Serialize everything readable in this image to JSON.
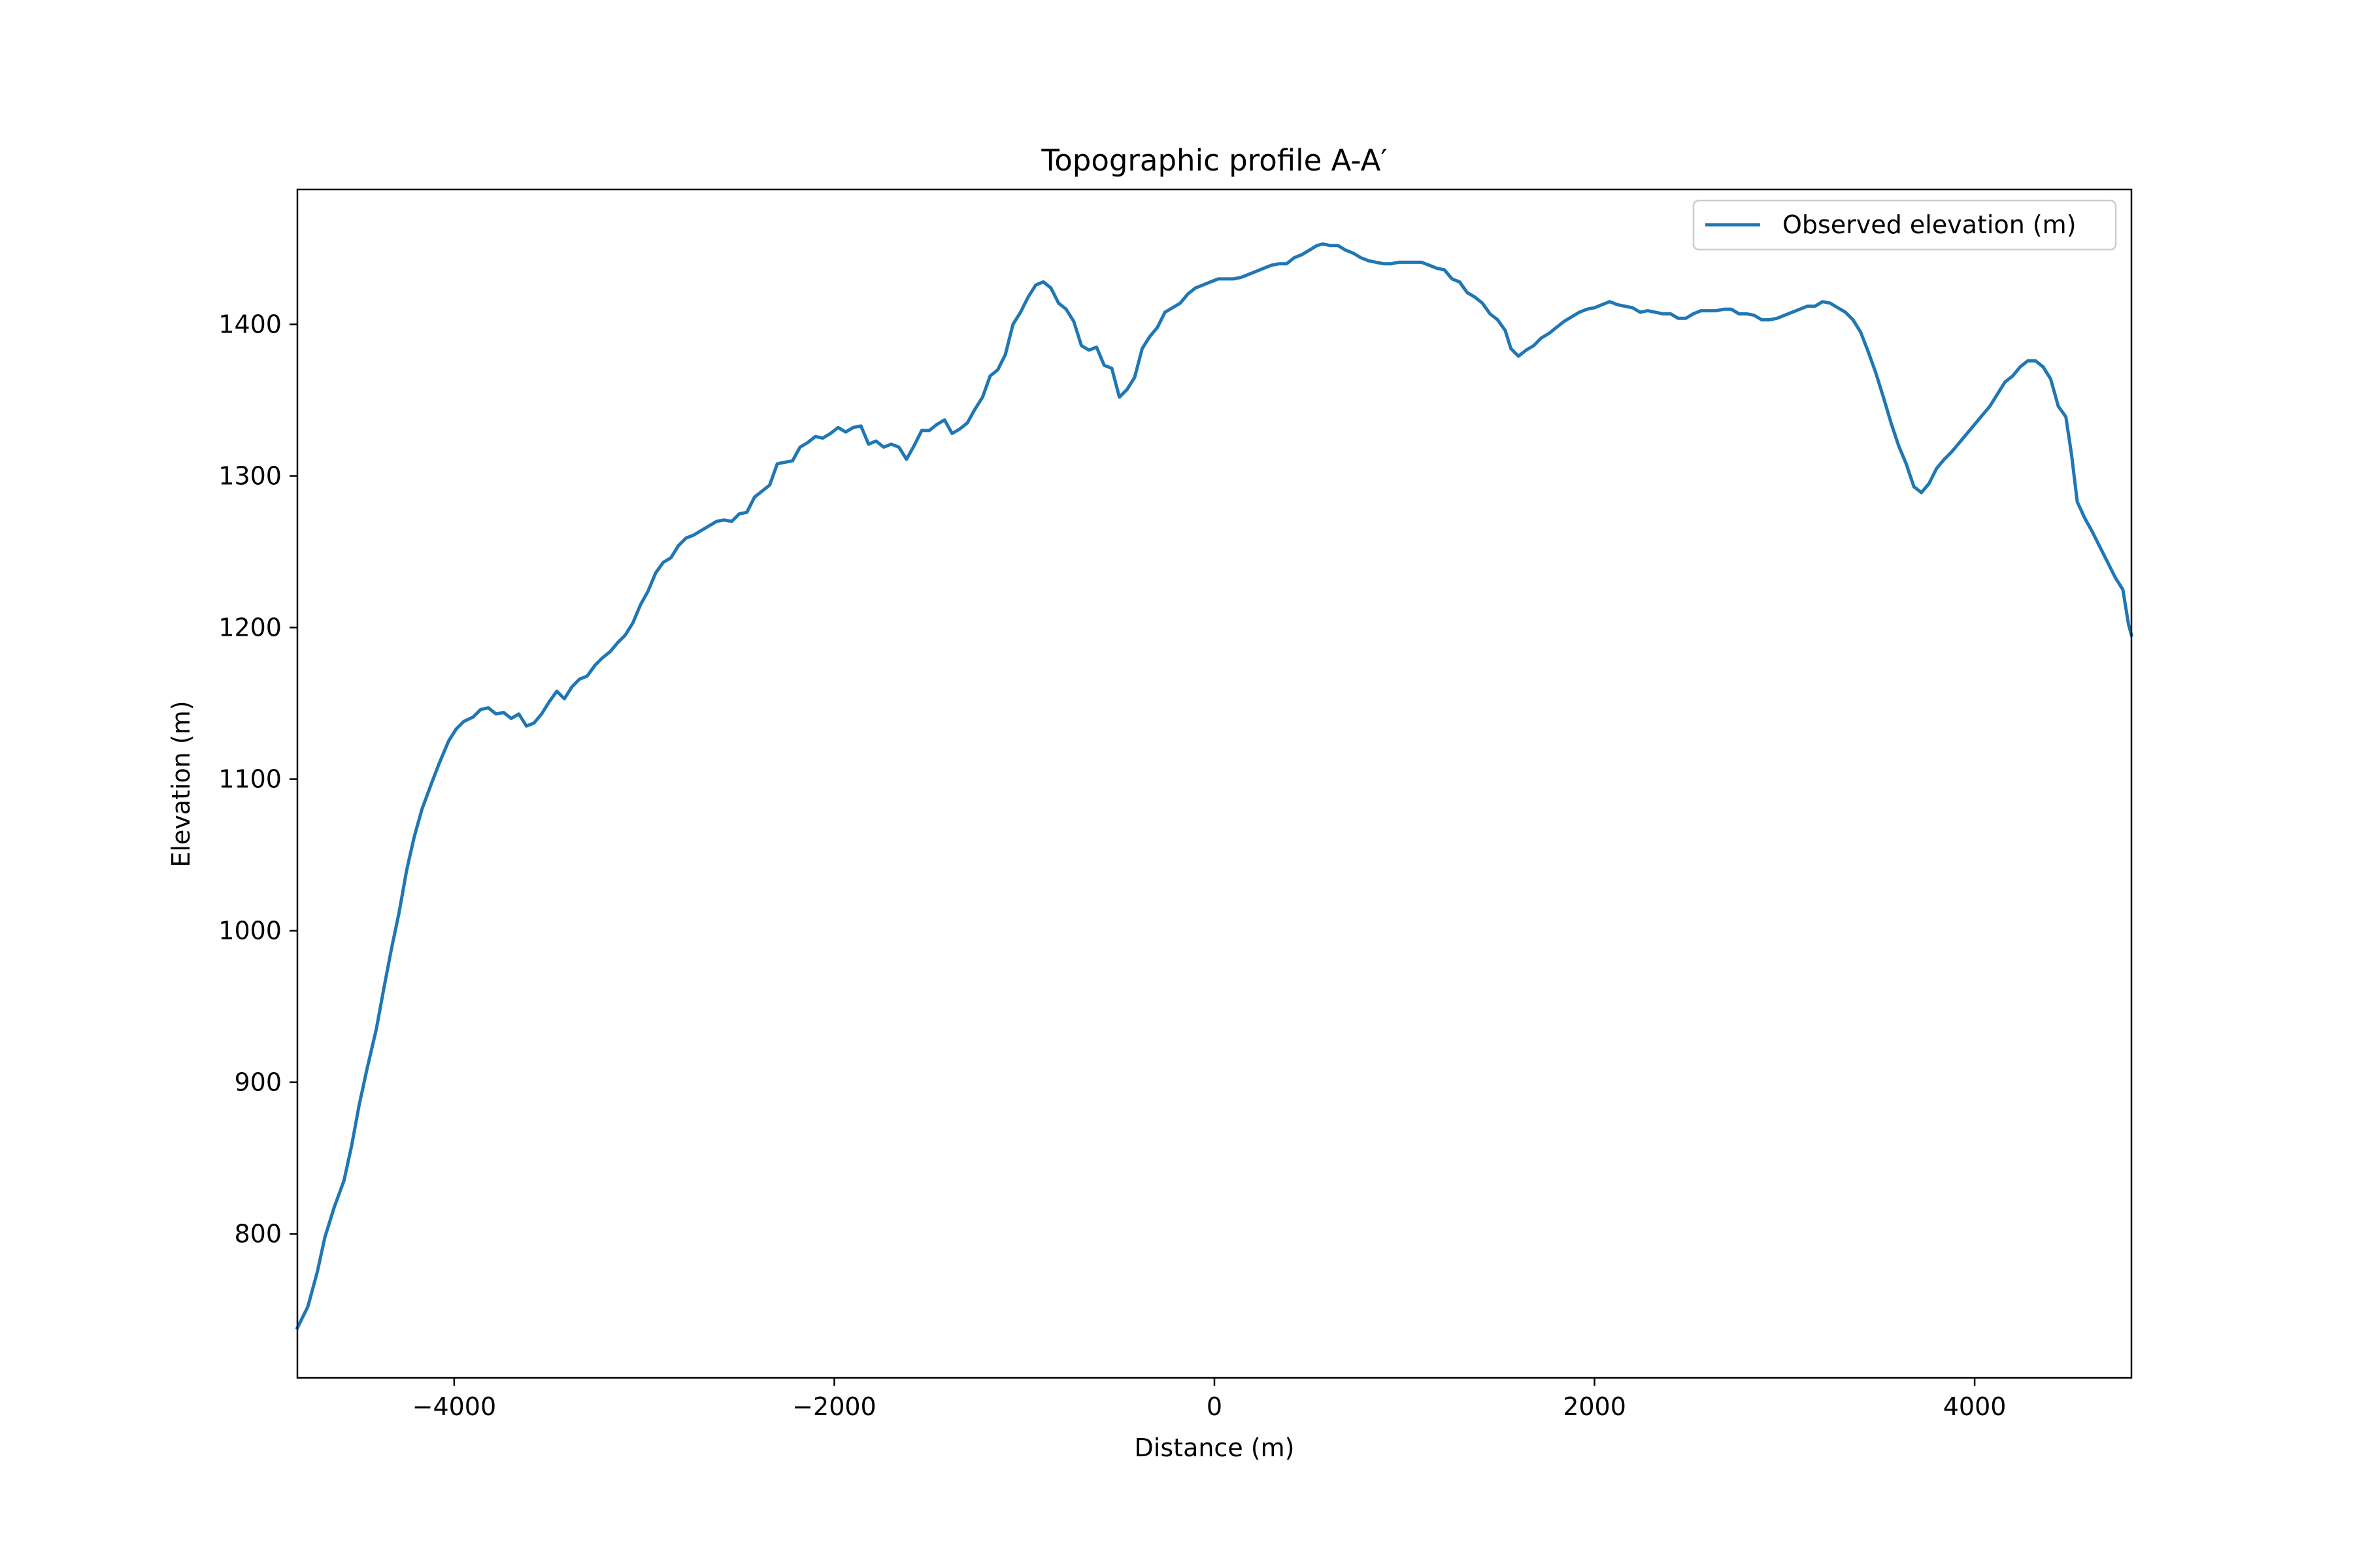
{
  "chart_data": {
    "type": "line",
    "title": "Topographic profile A-A′",
    "xlabel": "Distance (m)",
    "ylabel": "Elevation (m)",
    "xlim": [
      -4825,
      4825
    ],
    "ylim": [
      705,
      1489
    ],
    "grid": false,
    "legend_position": "top-right",
    "xticks": [
      -4000,
      -2000,
      0,
      2000,
      4000
    ],
    "xtick_labels": [
      "−4000",
      "−2000",
      "0",
      "2000",
      "4000"
    ],
    "yticks": [
      800,
      900,
      1000,
      1100,
      1200,
      1300,
      1400
    ],
    "ytick_labels": [
      "800",
      "900",
      "1000",
      "1100",
      "1200",
      "1300",
      "1400"
    ],
    "series": [
      {
        "name": "Observed elevation (m)",
        "color": "#1f77b4",
        "points": [
          [
            -4825,
            738
          ],
          [
            -4770,
            752
          ],
          [
            -4720,
            775
          ],
          [
            -4680,
            798
          ],
          [
            -4630,
            818
          ],
          [
            -4580,
            835
          ],
          [
            -4540,
            858
          ],
          [
            -4500,
            885
          ],
          [
            -4460,
            908
          ],
          [
            -4410,
            935
          ],
          [
            -4370,
            962
          ],
          [
            -4330,
            988
          ],
          [
            -4290,
            1012
          ],
          [
            -4250,
            1040
          ],
          [
            -4210,
            1062
          ],
          [
            -4170,
            1080
          ],
          [
            -4120,
            1097
          ],
          [
            -4080,
            1110
          ],
          [
            -4030,
            1125
          ],
          [
            -3990,
            1133
          ],
          [
            -3950,
            1138
          ],
          [
            -3900,
            1141
          ],
          [
            -3860,
            1146
          ],
          [
            -3820,
            1147
          ],
          [
            -3780,
            1143
          ],
          [
            -3740,
            1144
          ],
          [
            -3700,
            1140
          ],
          [
            -3660,
            1143
          ],
          [
            -3620,
            1135
          ],
          [
            -3580,
            1137
          ],
          [
            -3540,
            1143
          ],
          [
            -3500,
            1151
          ],
          [
            -3460,
            1158
          ],
          [
            -3420,
            1153
          ],
          [
            -3380,
            1161
          ],
          [
            -3340,
            1166
          ],
          [
            -3300,
            1168
          ],
          [
            -3260,
            1175
          ],
          [
            -3220,
            1180
          ],
          [
            -3180,
            1184
          ],
          [
            -3140,
            1190
          ],
          [
            -3100,
            1195
          ],
          [
            -3060,
            1203
          ],
          [
            -3020,
            1215
          ],
          [
            -2980,
            1224
          ],
          [
            -2940,
            1236
          ],
          [
            -2900,
            1243
          ],
          [
            -2860,
            1246
          ],
          [
            -2820,
            1254
          ],
          [
            -2780,
            1259
          ],
          [
            -2740,
            1261
          ],
          [
            -2700,
            1264
          ],
          [
            -2660,
            1267
          ],
          [
            -2620,
            1270
          ],
          [
            -2580,
            1271
          ],
          [
            -2540,
            1270
          ],
          [
            -2500,
            1275
          ],
          [
            -2460,
            1276
          ],
          [
            -2420,
            1286
          ],
          [
            -2380,
            1290
          ],
          [
            -2340,
            1294
          ],
          [
            -2300,
            1308
          ],
          [
            -2260,
            1309
          ],
          [
            -2220,
            1310
          ],
          [
            -2180,
            1319
          ],
          [
            -2140,
            1322
          ],
          [
            -2100,
            1326
          ],
          [
            -2060,
            1325
          ],
          [
            -2020,
            1328
          ],
          [
            -1980,
            1332
          ],
          [
            -1940,
            1329
          ],
          [
            -1900,
            1332
          ],
          [
            -1860,
            1333
          ],
          [
            -1820,
            1321
          ],
          [
            -1780,
            1323
          ],
          [
            -1740,
            1319
          ],
          [
            -1700,
            1321
          ],
          [
            -1660,
            1319
          ],
          [
            -1620,
            1311
          ],
          [
            -1580,
            1320
          ],
          [
            -1540,
            1330
          ],
          [
            -1500,
            1330
          ],
          [
            -1460,
            1334
          ],
          [
            -1420,
            1337
          ],
          [
            -1380,
            1328
          ],
          [
            -1340,
            1331
          ],
          [
            -1300,
            1335
          ],
          [
            -1260,
            1344
          ],
          [
            -1220,
            1352
          ],
          [
            -1180,
            1366
          ],
          [
            -1140,
            1370
          ],
          [
            -1100,
            1380
          ],
          [
            -1060,
            1400
          ],
          [
            -1020,
            1408
          ],
          [
            -980,
            1418
          ],
          [
            -940,
            1426
          ],
          [
            -900,
            1428
          ],
          [
            -860,
            1424
          ],
          [
            -820,
            1414
          ],
          [
            -780,
            1410
          ],
          [
            -740,
            1402
          ],
          [
            -700,
            1386
          ],
          [
            -660,
            1383
          ],
          [
            -620,
            1385
          ],
          [
            -580,
            1373
          ],
          [
            -540,
            1371
          ],
          [
            -500,
            1352
          ],
          [
            -460,
            1357
          ],
          [
            -420,
            1365
          ],
          [
            -380,
            1384
          ],
          [
            -340,
            1392
          ],
          [
            -300,
            1398
          ],
          [
            -260,
            1408
          ],
          [
            -220,
            1411
          ],
          [
            -180,
            1414
          ],
          [
            -140,
            1420
          ],
          [
            -100,
            1424
          ],
          [
            -60,
            1426
          ],
          [
            -20,
            1428
          ],
          [
            20,
            1430
          ],
          [
            60,
            1430
          ],
          [
            100,
            1430
          ],
          [
            140,
            1431
          ],
          [
            180,
            1433
          ],
          [
            220,
            1435
          ],
          [
            260,
            1437
          ],
          [
            300,
            1439
          ],
          [
            340,
            1440
          ],
          [
            380,
            1440
          ],
          [
            420,
            1444
          ],
          [
            460,
            1446
          ],
          [
            500,
            1449
          ],
          [
            540,
            1452
          ],
          [
            570,
            1453
          ],
          [
            610,
            1452
          ],
          [
            650,
            1452
          ],
          [
            690,
            1449
          ],
          [
            730,
            1447
          ],
          [
            770,
            1444
          ],
          [
            810,
            1442
          ],
          [
            850,
            1441
          ],
          [
            890,
            1440
          ],
          [
            930,
            1440
          ],
          [
            970,
            1441
          ],
          [
            1010,
            1441
          ],
          [
            1050,
            1441
          ],
          [
            1090,
            1441
          ],
          [
            1130,
            1439
          ],
          [
            1170,
            1437
          ],
          [
            1210,
            1436
          ],
          [
            1250,
            1430
          ],
          [
            1290,
            1428
          ],
          [
            1330,
            1421
          ],
          [
            1370,
            1418
          ],
          [
            1410,
            1414
          ],
          [
            1450,
            1407
          ],
          [
            1490,
            1403
          ],
          [
            1530,
            1396
          ],
          [
            1560,
            1384
          ],
          [
            1600,
            1379
          ],
          [
            1640,
            1383
          ],
          [
            1680,
            1386
          ],
          [
            1720,
            1391
          ],
          [
            1760,
            1394
          ],
          [
            1800,
            1398
          ],
          [
            1840,
            1402
          ],
          [
            1880,
            1405
          ],
          [
            1920,
            1408
          ],
          [
            1960,
            1410
          ],
          [
            2000,
            1411
          ],
          [
            2040,
            1413
          ],
          [
            2080,
            1415
          ],
          [
            2120,
            1413
          ],
          [
            2160,
            1412
          ],
          [
            2200,
            1411
          ],
          [
            2240,
            1408
          ],
          [
            2280,
            1409
          ],
          [
            2320,
            1408
          ],
          [
            2360,
            1407
          ],
          [
            2400,
            1407
          ],
          [
            2440,
            1404
          ],
          [
            2480,
            1404
          ],
          [
            2520,
            1407
          ],
          [
            2560,
            1409
          ],
          [
            2600,
            1409
          ],
          [
            2640,
            1409
          ],
          [
            2680,
            1410
          ],
          [
            2720,
            1410
          ],
          [
            2760,
            1407
          ],
          [
            2800,
            1407
          ],
          [
            2840,
            1406
          ],
          [
            2880,
            1403
          ],
          [
            2920,
            1403
          ],
          [
            2960,
            1404
          ],
          [
            3000,
            1406
          ],
          [
            3040,
            1408
          ],
          [
            3080,
            1410
          ],
          [
            3120,
            1412
          ],
          [
            3160,
            1412
          ],
          [
            3200,
            1415
          ],
          [
            3240,
            1414
          ],
          [
            3280,
            1411
          ],
          [
            3320,
            1408
          ],
          [
            3360,
            1403
          ],
          [
            3400,
            1395
          ],
          [
            3440,
            1382
          ],
          [
            3480,
            1368
          ],
          [
            3520,
            1352
          ],
          [
            3560,
            1335
          ],
          [
            3600,
            1320
          ],
          [
            3640,
            1308
          ],
          [
            3680,
            1293
          ],
          [
            3720,
            1289
          ],
          [
            3760,
            1295
          ],
          [
            3800,
            1305
          ],
          [
            3840,
            1311
          ],
          [
            3880,
            1316
          ],
          [
            3920,
            1322
          ],
          [
            3960,
            1328
          ],
          [
            4000,
            1334
          ],
          [
            4040,
            1340
          ],
          [
            4080,
            1346
          ],
          [
            4120,
            1354
          ],
          [
            4160,
            1362
          ],
          [
            4200,
            1366
          ],
          [
            4240,
            1372
          ],
          [
            4280,
            1376
          ],
          [
            4320,
            1376
          ],
          [
            4360,
            1372
          ],
          [
            4400,
            1364
          ],
          [
            4440,
            1346
          ],
          [
            4480,
            1339
          ],
          [
            4510,
            1314
          ],
          [
            4540,
            1283
          ],
          [
            4580,
            1272
          ],
          [
            4620,
            1263
          ],
          [
            4660,
            1253
          ],
          [
            4700,
            1243
          ],
          [
            4740,
            1233
          ],
          [
            4780,
            1225
          ],
          [
            4810,
            1202
          ],
          [
            4825,
            1195
          ]
        ]
      }
    ]
  }
}
